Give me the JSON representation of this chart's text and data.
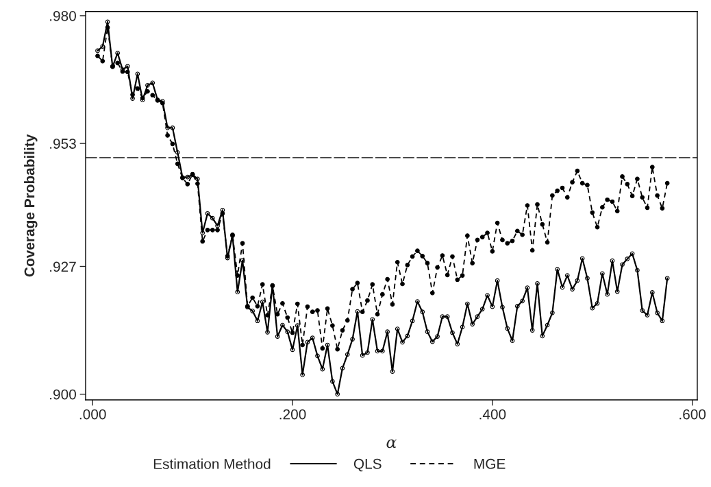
{
  "chart_data": {
    "type": "line",
    "xlabel": "α",
    "ylabel": "Coverage Probability",
    "legend_title": "Estimation Method",
    "x": [
      0.005,
      0.01,
      0.015,
      0.02,
      0.025,
      0.03,
      0.035,
      0.04,
      0.045,
      0.05,
      0.055,
      0.06,
      0.065,
      0.07,
      0.075,
      0.08,
      0.085,
      0.09,
      0.095,
      0.1,
      0.105,
      0.11,
      0.115,
      0.12,
      0.125,
      0.13,
      0.135,
      0.14,
      0.145,
      0.15,
      0.155,
      0.16,
      0.165,
      0.17,
      0.175,
      0.18,
      0.185,
      0.19,
      0.195,
      0.2,
      0.205,
      0.21,
      0.215,
      0.22,
      0.225,
      0.23,
      0.235,
      0.24,
      0.245,
      0.25,
      0.255,
      0.26,
      0.265,
      0.27,
      0.275,
      0.28,
      0.285,
      0.29,
      0.295,
      0.3,
      0.305,
      0.31,
      0.315,
      0.32,
      0.325,
      0.33,
      0.335,
      0.34,
      0.345,
      0.35,
      0.355,
      0.36,
      0.365,
      0.37,
      0.375,
      0.38,
      0.385,
      0.39,
      0.395,
      0.4,
      0.405,
      0.41,
      0.415,
      0.42,
      0.425,
      0.43,
      0.435,
      0.44,
      0.445,
      0.45,
      0.455,
      0.46,
      0.465,
      0.47,
      0.475,
      0.48,
      0.485,
      0.49,
      0.495,
      0.5,
      0.505,
      0.51,
      0.515,
      0.52,
      0.525,
      0.53,
      0.535,
      0.54,
      0.545,
      0.55,
      0.555,
      0.56,
      0.565,
      0.57,
      0.575
    ],
    "series": [
      {
        "name": "QLS",
        "color": "#000000",
        "line_style": "solid",
        "marker": "circle",
        "values": [
          0.9726,
          0.9735,
          0.9787,
          0.9692,
          0.9721,
          0.9686,
          0.9693,
          0.9625,
          0.9677,
          0.9622,
          0.9653,
          0.9658,
          0.9622,
          0.9619,
          0.9563,
          0.9563,
          0.9511,
          0.9458,
          0.9459,
          0.9464,
          0.9455,
          0.9341,
          0.9382,
          0.9372,
          0.9356,
          0.9389,
          0.9288,
          0.9335,
          0.9216,
          0.9283,
          0.9184,
          0.9176,
          0.9155,
          0.9195,
          0.9131,
          0.923,
          0.9122,
          0.9146,
          0.9132,
          0.9094,
          0.9145,
          0.9041,
          0.911,
          0.9119,
          0.9081,
          0.9053,
          0.9104,
          0.9027,
          0.9,
          0.9055,
          0.9084,
          0.9116,
          0.9175,
          0.9082,
          0.9088,
          0.9158,
          0.9091,
          0.9091,
          0.9132,
          0.9048,
          0.9138,
          0.911,
          0.9123,
          0.9155,
          0.9196,
          0.9174,
          0.9132,
          0.9111,
          0.9122,
          0.9164,
          0.9164,
          0.913,
          0.9106,
          0.9142,
          0.9191,
          0.9148,
          0.9164,
          0.918,
          0.9209,
          0.9185,
          0.924,
          0.9184,
          0.9139,
          0.9113,
          0.9186,
          0.9197,
          0.9225,
          0.9135,
          0.9234,
          0.9123,
          0.9146,
          0.9172,
          0.9264,
          0.9226,
          0.9251,
          0.9222,
          0.924,
          0.9287,
          0.9245,
          0.9182,
          0.9192,
          0.9255,
          0.9211,
          0.9282,
          0.9217,
          0.9274,
          0.9286,
          0.9297,
          0.9262,
          0.9177,
          0.9167,
          0.9215,
          0.9172,
          0.9155,
          0.9245
        ]
      },
      {
        "name": "MGE",
        "color": "#000000",
        "line_style": "dashed",
        "marker": "circle",
        "values": [
          0.9715,
          0.9704,
          0.9775,
          0.9693,
          0.97,
          0.9682,
          0.9681,
          0.9633,
          0.9646,
          0.9626,
          0.964,
          0.9632,
          0.9621,
          0.9615,
          0.9547,
          0.9529,
          0.9487,
          0.9457,
          0.9444,
          0.9465,
          0.9445,
          0.9323,
          0.9347,
          0.9347,
          0.9347,
          0.9382,
          0.9292,
          0.9337,
          0.9251,
          0.9319,
          0.9186,
          0.9204,
          0.9186,
          0.9232,
          0.9167,
          0.9229,
          0.9169,
          0.9192,
          0.9162,
          0.913,
          0.9191,
          0.9104,
          0.9185,
          0.9174,
          0.9177,
          0.9097,
          0.9181,
          0.9145,
          0.9095,
          0.9135,
          0.9156,
          0.9222,
          0.9235,
          0.9174,
          0.9198,
          0.9232,
          0.9169,
          0.9211,
          0.9243,
          0.919,
          0.9279,
          0.9233,
          0.9273,
          0.9291,
          0.9303,
          0.9292,
          0.9277,
          0.9214,
          0.9268,
          0.9293,
          0.9252,
          0.9291,
          0.9242,
          0.9251,
          0.9335,
          0.9277,
          0.9326,
          0.9332,
          0.9341,
          0.9302,
          0.9362,
          0.9326,
          0.9319,
          0.9324,
          0.9345,
          0.9337,
          0.9399,
          0.9304,
          0.9401,
          0.9359,
          0.9321,
          0.942,
          0.943,
          0.9436,
          0.9416,
          0.9448,
          0.9472,
          0.9446,
          0.9442,
          0.9384,
          0.9353,
          0.9395,
          0.9411,
          0.9407,
          0.9387,
          0.946,
          0.9444,
          0.9419,
          0.9455,
          0.9416,
          0.9394,
          0.948,
          0.942,
          0.9393,
          0.9446
        ]
      }
    ],
    "xlim": [
      -0.007,
      0.605
    ],
    "ylim": [
      0.8988,
      0.9809
    ],
    "xticks": [
      {
        "value": 0.0,
        "label": ".000"
      },
      {
        "value": 0.2,
        "label": ".200"
      },
      {
        "value": 0.4,
        "label": ".400"
      },
      {
        "value": 0.6,
        "label": ".600"
      }
    ],
    "yticks": [
      {
        "value": 0.9,
        "label": ".900"
      },
      {
        "value": 0.927,
        "label": ".927"
      },
      {
        "value": 0.953,
        "label": ".953"
      },
      {
        "value": 0.98,
        "label": ".980"
      }
    ],
    "ref_lines": [
      {
        "axis": "y",
        "value": 0.95,
        "color": "#000000",
        "line_style": "dashed"
      }
    ],
    "grid": false,
    "legend": "bottom"
  }
}
